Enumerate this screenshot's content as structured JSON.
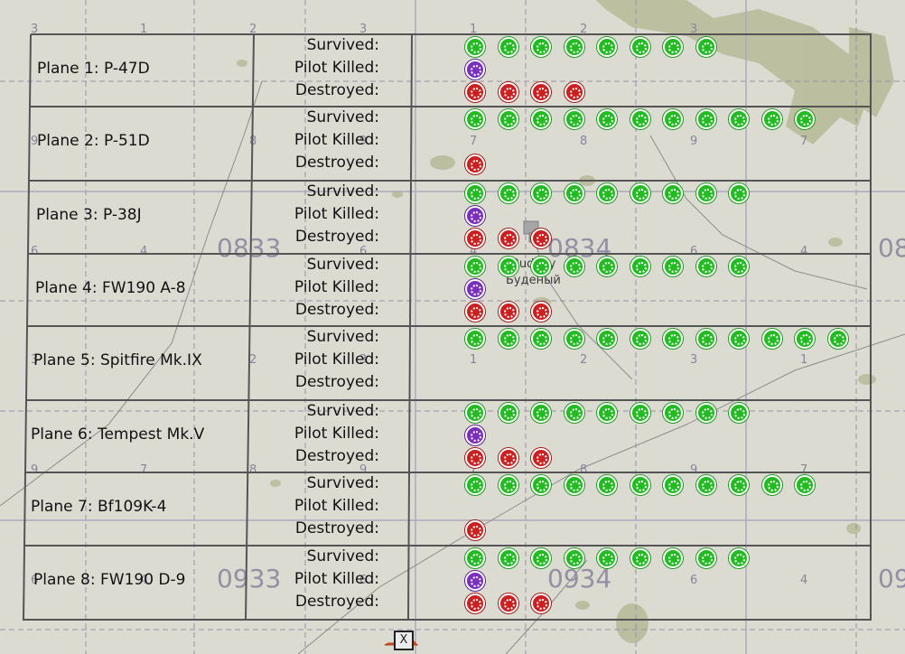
{
  "map": {
    "grid_numbers_top": [
      "3",
      "1",
      "2",
      "3",
      "1",
      "2",
      "3"
    ],
    "grid_numbers_row2": [
      "9",
      "8",
      "9",
      "7",
      "8",
      "9",
      "7"
    ],
    "grid_numbers_row3": [
      "6",
      "4",
      "6",
      "4",
      "6",
      "4"
    ],
    "grid_numbers_row4": [
      "3",
      "2",
      "3",
      "1",
      "2",
      "3",
      "1"
    ],
    "grid_numbers_row5": [
      "9",
      "7",
      "8",
      "9",
      "7",
      "8",
      "9",
      "7"
    ],
    "grid_numbers_row6": [
      "6",
      "4",
      "6",
      "4",
      "6",
      "4"
    ],
    "square_labels": [
      "0833",
      "0834",
      "08",
      "0933",
      "0934",
      "09"
    ],
    "town_latin": "Budeny",
    "town_cyrillic": "Буденый",
    "marker_symbol": "X"
  },
  "stat_labels": {
    "survived": "Survived:",
    "killed": "Pilot Killed:",
    "destroyed": "Destroyed:"
  },
  "planes": [
    {
      "name": "Plane 1: P-47D",
      "survived": 8,
      "killed": 1,
      "destroyed": 4
    },
    {
      "name": "Plane 2: P-51D",
      "survived": 11,
      "killed": 0,
      "destroyed": 1
    },
    {
      "name": "Plane 3: P-38J",
      "survived": 9,
      "killed": 1,
      "destroyed": 3
    },
    {
      "name": "Plane 4: FW190 A-8",
      "survived": 9,
      "killed": 1,
      "destroyed": 3
    },
    {
      "name": "Plane 5: Spitfire Mk.IX",
      "survived": 12,
      "killed": 0,
      "destroyed": 0
    },
    {
      "name": "Plane 6: Tempest Mk.V",
      "survived": 9,
      "killed": 1,
      "destroyed": 3
    },
    {
      "name": "Plane 7: Bf109K-4",
      "survived": 11,
      "killed": 0,
      "destroyed": 1
    },
    {
      "name": "Plane 8: FW190 D-9",
      "survived": 9,
      "killed": 1,
      "destroyed": 3
    }
  ],
  "colors": {
    "survived": "#22bb22",
    "killed": "#7a2fbf",
    "destroyed": "#cc1f1f",
    "map_background": "#dcdbd2",
    "terrain_patch": "#b8bd9a",
    "grid_line": "#9a8fa6",
    "table_line": "#555555"
  },
  "icons": {
    "survived": "green-survived-roundel-icon",
    "killed": "purple-pilot-killed-roundel-icon",
    "destroyed": "red-destroyed-roundel-icon",
    "marker": "airfield-marker-icon"
  }
}
